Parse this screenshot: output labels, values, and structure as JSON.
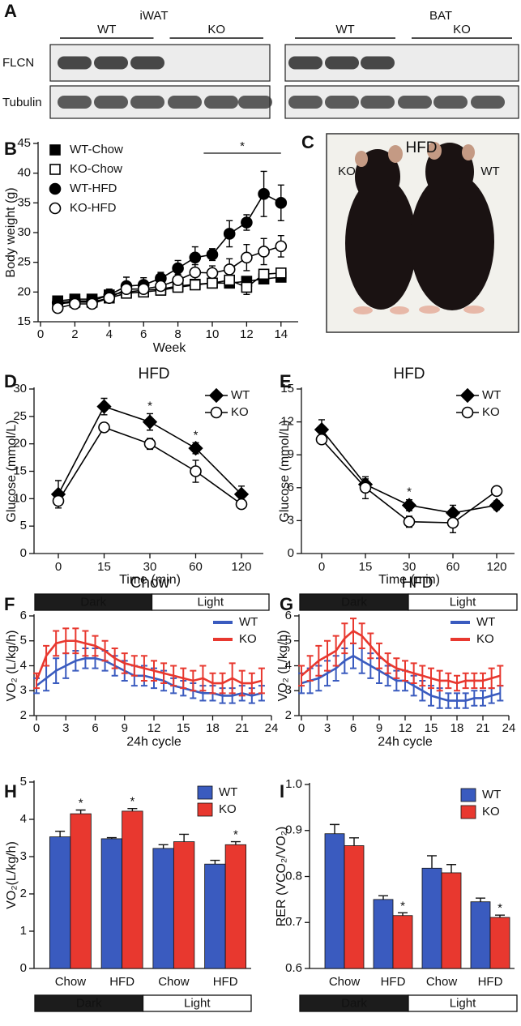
{
  "panel_a": {
    "letter": "A",
    "tissues": [
      {
        "name": "iWAT",
        "groups": [
          "WT",
          "KO"
        ]
      },
      {
        "name": "BAT",
        "groups": [
          "WT",
          "KO"
        ]
      }
    ],
    "rows": [
      "FLCN",
      "Tubulin"
    ]
  },
  "panel_c": {
    "letter": "C",
    "title": "HFD",
    "labels": [
      "KO",
      "WT"
    ]
  },
  "chart_data": [
    {
      "type": "line",
      "panel": "B",
      "xlabel": "Week",
      "ylabel": "Body weight (g)",
      "x": [
        1,
        2,
        3,
        4,
        5,
        6,
        7,
        8,
        9,
        10,
        11,
        12,
        13,
        14
      ],
      "xlim": [
        0,
        15
      ],
      "xticks": [
        0,
        2,
        4,
        6,
        8,
        10,
        12,
        14
      ],
      "ylim": [
        15,
        45
      ],
      "yticks": [
        15,
        20,
        25,
        30,
        35,
        40,
        45
      ],
      "legend": "upper left",
      "series": [
        {
          "name": "WT-Chow",
          "color": "#000000",
          "marker": "square",
          "filled": true,
          "values": [
            18.5,
            18.8,
            18.8,
            19.5,
            20,
            20.3,
            20.5,
            21,
            21.3,
            21.5,
            21.5,
            21.8,
            22.2,
            22.5
          ],
          "errors": [
            0.5,
            0.5,
            0.5,
            0.5,
            0.6,
            0.5,
            0.5,
            0.5,
            0.5,
            0.5,
            0.6,
            0.6,
            0.6,
            0.6
          ]
        },
        {
          "name": "KO-Chow",
          "color": "#000000",
          "marker": "square",
          "filled": false,
          "values": [
            18,
            18.3,
            18.3,
            19,
            19.8,
            20,
            20.3,
            20.8,
            21.2,
            21.5,
            22,
            20.8,
            23,
            23.2
          ],
          "errors": [
            0.5,
            0.5,
            0.5,
            0.6,
            0.7,
            0.6,
            0.6,
            0.6,
            0.6,
            0.6,
            0.7,
            1.2,
            0.7,
            0.7
          ]
        },
        {
          "name": "WT-HFD",
          "color": "#000000",
          "marker": "circle",
          "filled": true,
          "values": [
            18.2,
            18.5,
            18.5,
            19.5,
            21,
            21.2,
            22.3,
            24,
            25.8,
            26.3,
            29.8,
            31.7,
            36.5,
            35
          ],
          "errors": [
            0.5,
            0.8,
            0.8,
            1,
            1.5,
            1.2,
            1,
            1.3,
            1.8,
            1,
            2.2,
            1.3,
            3.8,
            3
          ]
        },
        {
          "name": "KO-HFD",
          "color": "#000000",
          "marker": "circle",
          "filled": false,
          "values": [
            17.3,
            18,
            18,
            19,
            20.5,
            20.5,
            21,
            22,
            23.3,
            23.2,
            23.8,
            25.8,
            26.8,
            27.7
          ],
          "errors": [
            0.4,
            0.5,
            0.5,
            0.8,
            1,
            1,
            1,
            1,
            1.3,
            1.2,
            1.8,
            2.2,
            2.2,
            1.8
          ]
        }
      ],
      "annotations": [
        {
          "text": "*",
          "x": [
            9.5,
            14
          ]
        }
      ]
    },
    {
      "type": "line",
      "panel": "D",
      "title": "HFD",
      "xlabel": "Time (min)",
      "ylabel": "Glucose (mmol/L)",
      "categories": [
        "0",
        "15",
        "30",
        "60",
        "120"
      ],
      "ylim": [
        0,
        30
      ],
      "yticks": [
        0,
        5,
        10,
        15,
        20,
        25,
        30
      ],
      "legend": "upper right",
      "series": [
        {
          "name": "WT",
          "color": "#000000",
          "marker": "diamond",
          "filled": true,
          "values": [
            10.8,
            26.8,
            24,
            19.2,
            10.8
          ],
          "errors": [
            2.5,
            1.5,
            1.5,
            1,
            1.5
          ]
        },
        {
          "name": "KO",
          "color": "#000000",
          "marker": "circle",
          "filled": false,
          "values": [
            9.6,
            23,
            20,
            15,
            9
          ],
          "errors": [
            0.5,
            0.8,
            1,
            2,
            0.5
          ]
        }
      ],
      "annotations": [
        {
          "text": "*",
          "category": 2
        },
        {
          "text": "*",
          "category": 3
        }
      ]
    },
    {
      "type": "line",
      "panel": "E",
      "title": "HFD",
      "xlabel": "Time (min)",
      "ylabel": "Glucose (mmol/L)",
      "categories": [
        "0",
        "15",
        "30",
        "60",
        "120"
      ],
      "ylim": [
        0,
        15
      ],
      "yticks": [
        0,
        3,
        6,
        9,
        12,
        15
      ],
      "legend": "upper right",
      "series": [
        {
          "name": "WT",
          "color": "#000000",
          "marker": "diamond",
          "filled": true,
          "values": [
            11.3,
            6.3,
            4.4,
            3.7,
            4.4
          ],
          "errors": [
            0.9,
            0.5,
            0.5,
            0.7,
            0.4
          ]
        },
        {
          "name": "KO",
          "color": "#000000",
          "marker": "circle",
          "filled": false,
          "values": [
            10.4,
            6,
            2.9,
            2.8,
            5.7
          ],
          "errors": [
            0.3,
            1,
            0.5,
            0.9,
            0.4
          ]
        }
      ],
      "annotations": [
        {
          "text": "*",
          "category": 2
        }
      ]
    },
    {
      "type": "line",
      "panel": "F",
      "title": "Chow",
      "xlabel": "24h cycle",
      "ylabel": "VO₂ (L/kg/h)",
      "periods": [
        "Dark",
        "Light"
      ],
      "x": [
        0,
        1,
        2,
        3,
        4,
        5,
        6,
        7,
        8,
        9,
        10,
        11,
        12,
        13,
        14,
        15,
        16,
        17,
        18,
        19,
        20,
        21,
        22,
        23
      ],
      "xlim": [
        0,
        24
      ],
      "xticks": [
        0,
        3,
        6,
        9,
        12,
        15,
        18,
        21,
        24
      ],
      "ylim": [
        2,
        6
      ],
      "yticks": [
        2,
        3,
        4,
        5,
        6
      ],
      "legend": "upper right",
      "series": [
        {
          "name": "WT",
          "color": "#3a5bbf",
          "values": [
            3.2,
            3.5,
            3.8,
            4.0,
            4.2,
            4.3,
            4.3,
            4.2,
            4.0,
            3.8,
            3.6,
            3.6,
            3.5,
            3.4,
            3.2,
            3.1,
            3.0,
            2.9,
            2.9,
            2.8,
            2.8,
            2.9,
            2.8,
            2.9
          ],
          "errors": [
            0.3,
            0.5,
            0.5,
            0.5,
            0.4,
            0.4,
            0.4,
            0.4,
            0.4,
            0.4,
            0.4,
            0.4,
            0.4,
            0.4,
            0.3,
            0.3,
            0.3,
            0.3,
            0.3,
            0.3,
            0.3,
            0.3,
            0.3,
            0.3
          ]
        },
        {
          "name": "KO",
          "color": "#e8382f",
          "values": [
            3.4,
            4.4,
            4.9,
            5.0,
            5.0,
            4.9,
            4.8,
            4.6,
            4.3,
            4.1,
            4.0,
            3.9,
            3.8,
            3.7,
            3.6,
            3.5,
            3.4,
            3.5,
            3.3,
            3.3,
            3.5,
            3.3,
            3.3,
            3.4
          ],
          "errors": [
            0.3,
            0.4,
            0.5,
            0.5,
            0.5,
            0.5,
            0.4,
            0.4,
            0.4,
            0.4,
            0.4,
            0.5,
            0.4,
            0.4,
            0.4,
            0.4,
            0.4,
            0.5,
            0.4,
            0.4,
            0.6,
            0.5,
            0.4,
            0.5
          ]
        }
      ]
    },
    {
      "type": "line",
      "panel": "G",
      "title": "HFD",
      "xlabel": "24h cycle",
      "ylabel": "VO₂ (L/kg/h)",
      "periods": [
        "Dark",
        "Light"
      ],
      "x": [
        0,
        1,
        2,
        3,
        4,
        5,
        6,
        7,
        8,
        9,
        10,
        11,
        12,
        13,
        14,
        15,
        16,
        17,
        18,
        19,
        20,
        21,
        22,
        23
      ],
      "xlim": [
        0,
        24
      ],
      "xticks": [
        0,
        3,
        6,
        9,
        12,
        15,
        18,
        21,
        24
      ],
      "ylim": [
        2,
        6
      ],
      "yticks": [
        2,
        3,
        4,
        5,
        6
      ],
      "legend": "upper right",
      "series": [
        {
          "name": "WT",
          "color": "#3a5bbf",
          "values": [
            3.3,
            3.4,
            3.5,
            3.7,
            3.9,
            4.2,
            4.4,
            4.2,
            4.0,
            3.8,
            3.6,
            3.4,
            3.4,
            3.2,
            3.0,
            2.8,
            2.7,
            2.6,
            2.6,
            2.6,
            2.7,
            2.7,
            2.8,
            2.9
          ],
          "errors": [
            0.4,
            0.5,
            0.5,
            0.5,
            0.5,
            0.5,
            0.5,
            0.5,
            0.5,
            0.5,
            0.4,
            0.4,
            0.4,
            0.4,
            0.4,
            0.4,
            0.4,
            0.3,
            0.3,
            0.3,
            0.3,
            0.3,
            0.3,
            0.3
          ]
        },
        {
          "name": "KO",
          "color": "#e8382f",
          "values": [
            3.6,
            3.9,
            4.2,
            4.4,
            4.6,
            5.1,
            5.4,
            5.2,
            4.8,
            4.4,
            4.1,
            3.9,
            3.8,
            3.7,
            3.6,
            3.5,
            3.4,
            3.4,
            3.3,
            3.4,
            3.4,
            3.4,
            3.5,
            3.6
          ],
          "errors": [
            0.4,
            0.5,
            0.6,
            0.6,
            0.6,
            0.6,
            0.5,
            0.5,
            0.5,
            0.5,
            0.4,
            0.4,
            0.4,
            0.4,
            0.4,
            0.4,
            0.4,
            0.3,
            0.3,
            0.3,
            0.3,
            0.3,
            0.4,
            0.4
          ]
        }
      ]
    },
    {
      "type": "bar",
      "panel": "H",
      "ylabel": "VO₂(L/kg/h)",
      "periods": [
        "Dark",
        "Light"
      ],
      "categories": [
        "Chow",
        "HFD",
        "Chow",
        "HFD"
      ],
      "ylim": [
        0,
        5
      ],
      "yticks": [
        0,
        1,
        2,
        3,
        4,
        5
      ],
      "legend": "upper right",
      "series": [
        {
          "name": "WT",
          "color": "#3a5bbf",
          "values": [
            3.53,
            3.48,
            3.22,
            2.8
          ],
          "errors": [
            0.15,
            0.03,
            0.1,
            0.1
          ]
        },
        {
          "name": "KO",
          "color": "#e8382f",
          "values": [
            4.15,
            4.22,
            3.4,
            3.32
          ],
          "errors": [
            0.1,
            0.07,
            0.2,
            0.08
          ]
        }
      ],
      "annotations": [
        {
          "text": "*",
          "series": 1,
          "category": 0
        },
        {
          "text": "*",
          "series": 1,
          "category": 1
        },
        {
          "text": "*",
          "series": 1,
          "category": 3
        }
      ]
    },
    {
      "type": "bar",
      "panel": "I",
      "ylabel": "RER (VCO₂/VO₂)",
      "periods": [
        "Dark",
        "Light"
      ],
      "categories": [
        "Chow",
        "HFD",
        "Chow",
        "HFD"
      ],
      "ylim": [
        0.6,
        1.0
      ],
      "yticks": [
        0.6,
        0.7,
        0.8,
        0.9,
        {
          "value": 1.0,
          "label": "1.0"
        }
      ],
      "legend": "upper right",
      "series": [
        {
          "name": "WT",
          "color": "#3a5bbf",
          "values": [
            0.893,
            0.75,
            0.818,
            0.745
          ],
          "errors": [
            0.02,
            0.008,
            0.027,
            0.008
          ]
        },
        {
          "name": "KO",
          "color": "#e8382f",
          "values": [
            0.867,
            0.715,
            0.808,
            0.711
          ],
          "errors": [
            0.017,
            0.006,
            0.018,
            0.005
          ]
        }
      ],
      "annotations": [
        {
          "text": "*",
          "series": 1,
          "category": 1
        },
        {
          "text": "*",
          "series": 1,
          "category": 3
        }
      ]
    }
  ]
}
